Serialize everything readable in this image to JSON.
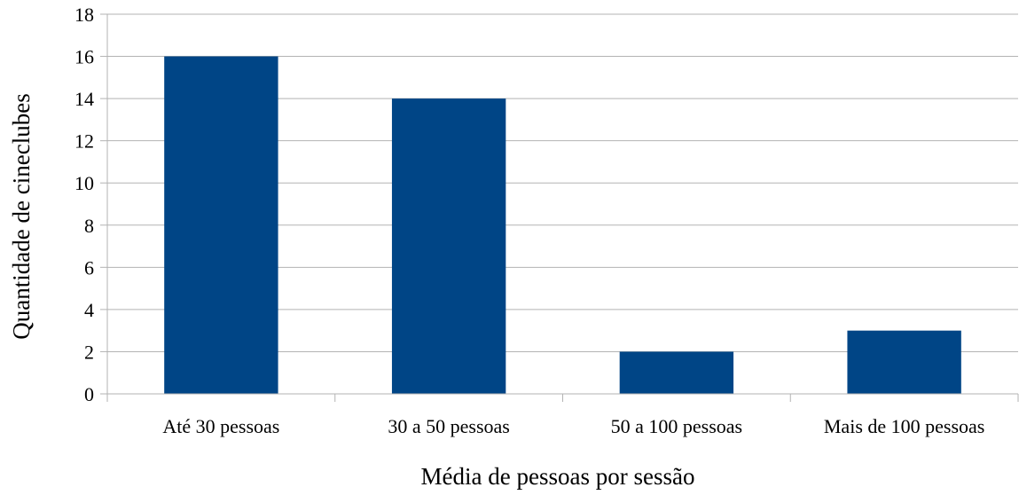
{
  "chart_data": {
    "type": "bar",
    "title": "",
    "xlabel": "Média de pessoas por sessão",
    "ylabel": "Quantidade de cineclubes",
    "categories": [
      "Até 30 pessoas",
      "30 a 50 pessoas",
      "50 a 100 pessoas",
      "Mais de 100 pessoas"
    ],
    "values": [
      16,
      14,
      2,
      3
    ],
    "ylim": [
      0,
      18
    ],
    "yticks": [
      "0",
      "2",
      "4",
      "6",
      "8",
      "10",
      "12",
      "14",
      "16",
      "18"
    ],
    "grid": true,
    "legend": "none",
    "colors": {
      "bar": "#004586",
      "grid": "#b3b3b3",
      "axis": "#b3b3b3"
    }
  }
}
